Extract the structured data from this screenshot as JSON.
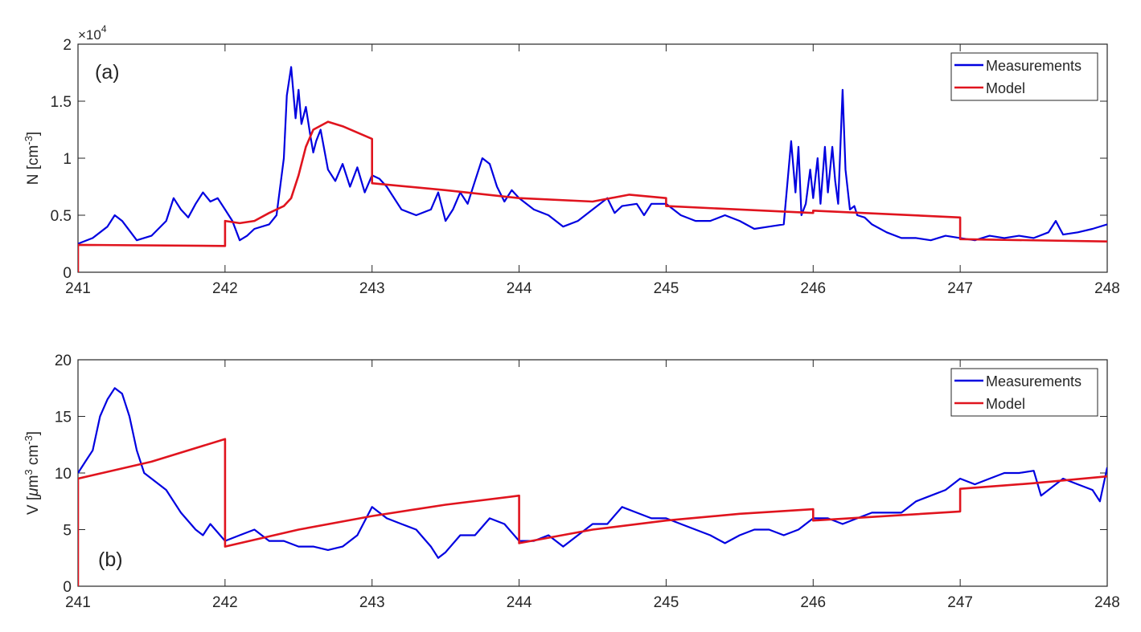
{
  "colors": {
    "measurements": "#0000e0",
    "model": "#e0141e",
    "axis": "#262626",
    "background": "#ffffff"
  },
  "chart_data": [
    {
      "type": "line",
      "panel_label": "(a)",
      "ylabel": "N [cm-3]",
      "ylabel_base": "N [cm",
      "ylabel_sup": "-3",
      "ylabel_end": "]",
      "exponent_label": "×10",
      "exponent_power": "4",
      "xlim": [
        241,
        248
      ],
      "ylim": [
        0,
        2
      ],
      "x_ticks": [
        "241",
        "242",
        "243",
        "244",
        "245",
        "246",
        "247",
        "248"
      ],
      "y_ticks": [
        "0",
        "0.5",
        "1",
        "1.5",
        "2"
      ],
      "y_scale_multiplier": 10000,
      "legend": {
        "position": "top-right",
        "entries": [
          "Measurements",
          "Model"
        ]
      },
      "series": [
        {
          "name": "Measurements",
          "x": [
            241.0,
            241.1,
            241.2,
            241.25,
            241.3,
            241.4,
            241.5,
            241.6,
            241.65,
            241.7,
            241.75,
            241.8,
            241.85,
            241.9,
            241.95,
            242.0,
            242.05,
            242.1,
            242.15,
            242.2,
            242.3,
            242.35,
            242.4,
            242.42,
            242.45,
            242.48,
            242.5,
            242.52,
            242.55,
            242.58,
            242.6,
            242.62,
            242.65,
            242.7,
            242.75,
            242.8,
            242.85,
            242.9,
            242.95,
            243.0,
            243.05,
            243.1,
            243.2,
            243.3,
            243.4,
            243.45,
            243.5,
            243.55,
            243.6,
            243.65,
            243.7,
            243.75,
            243.8,
            243.85,
            243.9,
            243.95,
            244.0,
            244.1,
            244.2,
            244.3,
            244.4,
            244.5,
            244.6,
            244.65,
            244.7,
            244.8,
            244.85,
            244.9,
            245.0,
            245.1,
            245.2,
            245.3,
            245.4,
            245.5,
            245.6,
            245.7,
            245.8,
            245.85,
            245.88,
            245.9,
            245.92,
            245.95,
            245.98,
            246.0,
            246.03,
            246.05,
            246.08,
            246.1,
            246.13,
            246.15,
            246.17,
            246.2,
            246.22,
            246.25,
            246.28,
            246.3,
            246.35,
            246.4,
            246.5,
            246.6,
            246.7,
            246.8,
            246.9,
            247.0,
            247.1,
            247.2,
            247.3,
            247.4,
            247.5,
            247.6,
            247.65,
            247.7,
            247.8,
            247.9,
            248.0
          ],
          "y": [
            0.25,
            0.3,
            0.4,
            0.5,
            0.45,
            0.28,
            0.32,
            0.45,
            0.65,
            0.55,
            0.48,
            0.6,
            0.7,
            0.62,
            0.65,
            0.55,
            0.45,
            0.28,
            0.32,
            0.38,
            0.42,
            0.5,
            1.0,
            1.55,
            1.8,
            1.35,
            1.6,
            1.3,
            1.45,
            1.2,
            1.05,
            1.15,
            1.25,
            0.9,
            0.8,
            0.95,
            0.75,
            0.92,
            0.7,
            0.85,
            0.82,
            0.75,
            0.55,
            0.5,
            0.55,
            0.7,
            0.45,
            0.55,
            0.7,
            0.6,
            0.8,
            1.0,
            0.95,
            0.75,
            0.62,
            0.72,
            0.65,
            0.55,
            0.5,
            0.4,
            0.45,
            0.55,
            0.65,
            0.52,
            0.58,
            0.6,
            0.5,
            0.6,
            0.6,
            0.5,
            0.45,
            0.45,
            0.5,
            0.45,
            0.38,
            0.4,
            0.42,
            1.15,
            0.7,
            1.1,
            0.5,
            0.6,
            0.9,
            0.65,
            1.0,
            0.6,
            1.1,
            0.7,
            1.1,
            0.8,
            0.6,
            1.6,
            0.9,
            0.55,
            0.58,
            0.5,
            0.48,
            0.42,
            0.35,
            0.3,
            0.3,
            0.28,
            0.32,
            0.3,
            0.28,
            0.32,
            0.3,
            0.32,
            0.3,
            0.35,
            0.45,
            0.33,
            0.35,
            0.38,
            0.42
          ]
        },
        {
          "name": "Model",
          "x": [
            241.0,
            241.0,
            242.0,
            242.0,
            242.1,
            242.2,
            242.3,
            242.4,
            242.45,
            242.5,
            242.55,
            242.6,
            242.7,
            242.8,
            243.0,
            243.0,
            243.5,
            244.0,
            244.5,
            244.75,
            245.0,
            245.0,
            246.0,
            246.0,
            247.0,
            247.0,
            248.0
          ],
          "y": [
            0.0,
            0.24,
            0.23,
            0.45,
            0.43,
            0.45,
            0.52,
            0.58,
            0.65,
            0.85,
            1.1,
            1.25,
            1.32,
            1.28,
            1.17,
            0.78,
            0.72,
            0.65,
            0.62,
            0.68,
            0.65,
            0.58,
            0.52,
            0.54,
            0.48,
            0.29,
            0.27
          ]
        }
      ]
    },
    {
      "type": "line",
      "panel_label": "(b)",
      "ylabel": "V [μm3 cm-3]",
      "ylabel_base": "V [",
      "ylabel_mu": "μ",
      "ylabel_m": "m",
      "ylabel_sup1": "3",
      "ylabel_cm": " cm",
      "ylabel_sup2": "-3",
      "ylabel_end": "]",
      "xlim": [
        241,
        248
      ],
      "ylim": [
        0,
        20
      ],
      "x_ticks": [
        "241",
        "242",
        "243",
        "244",
        "245",
        "246",
        "247",
        "248"
      ],
      "y_ticks": [
        "0",
        "5",
        "10",
        "15",
        "20"
      ],
      "legend": {
        "position": "top-right",
        "entries": [
          "Measurements",
          "Model"
        ]
      },
      "series": [
        {
          "name": "Measurements",
          "x": [
            241.0,
            241.05,
            241.1,
            241.15,
            241.2,
            241.25,
            241.3,
            241.35,
            241.4,
            241.45,
            241.5,
            241.6,
            241.7,
            241.8,
            241.85,
            241.9,
            242.0,
            242.1,
            242.2,
            242.3,
            242.4,
            242.5,
            242.6,
            242.7,
            242.8,
            242.9,
            243.0,
            243.1,
            243.2,
            243.3,
            243.4,
            243.45,
            243.5,
            243.6,
            243.7,
            243.8,
            243.9,
            244.0,
            244.1,
            244.2,
            244.3,
            244.4,
            244.5,
            244.6,
            244.7,
            244.8,
            244.9,
            245.0,
            245.1,
            245.2,
            245.3,
            245.4,
            245.5,
            245.6,
            245.7,
            245.8,
            245.9,
            246.0,
            246.1,
            246.2,
            246.3,
            246.4,
            246.5,
            246.6,
            246.7,
            246.8,
            246.9,
            247.0,
            247.1,
            247.2,
            247.3,
            247.4,
            247.5,
            247.55,
            247.6,
            247.7,
            247.8,
            247.9,
            247.95,
            248.0
          ],
          "y": [
            10.0,
            11.0,
            12.0,
            15.0,
            16.5,
            17.5,
            17.0,
            15.0,
            12.0,
            10.0,
            9.5,
            8.5,
            6.5,
            5.0,
            4.5,
            5.5,
            4.0,
            4.5,
            5.0,
            4.0,
            4.0,
            3.5,
            3.5,
            3.2,
            3.5,
            4.5,
            7.0,
            6.0,
            5.5,
            5.0,
            3.5,
            2.5,
            3.0,
            4.5,
            4.5,
            6.0,
            5.5,
            4.0,
            4.0,
            4.5,
            3.5,
            4.5,
            5.5,
            5.5,
            7.0,
            6.5,
            6.0,
            6.0,
            5.5,
            5.0,
            4.5,
            3.8,
            4.5,
            5.0,
            5.0,
            4.5,
            5.0,
            6.0,
            6.0,
            5.5,
            6.0,
            6.5,
            6.5,
            6.5,
            7.5,
            8.0,
            8.5,
            9.5,
            9.0,
            9.5,
            10.0,
            10.0,
            10.2,
            8.0,
            8.5,
            9.5,
            9.0,
            8.5,
            7.5,
            10.5
          ]
        },
        {
          "name": "Model",
          "x": [
            241.0,
            241.0,
            241.5,
            242.0,
            242.0,
            242.5,
            243.0,
            243.5,
            244.0,
            244.0,
            244.5,
            245.0,
            245.5,
            246.0,
            246.0,
            246.5,
            247.0,
            247.0,
            247.5,
            248.0
          ],
          "y": [
            0.0,
            9.5,
            11.0,
            13.0,
            3.5,
            5.0,
            6.2,
            7.2,
            8.0,
            3.8,
            5.0,
            5.8,
            6.4,
            6.8,
            5.8,
            6.2,
            6.6,
            8.6,
            9.1,
            9.7
          ]
        }
      ]
    }
  ]
}
